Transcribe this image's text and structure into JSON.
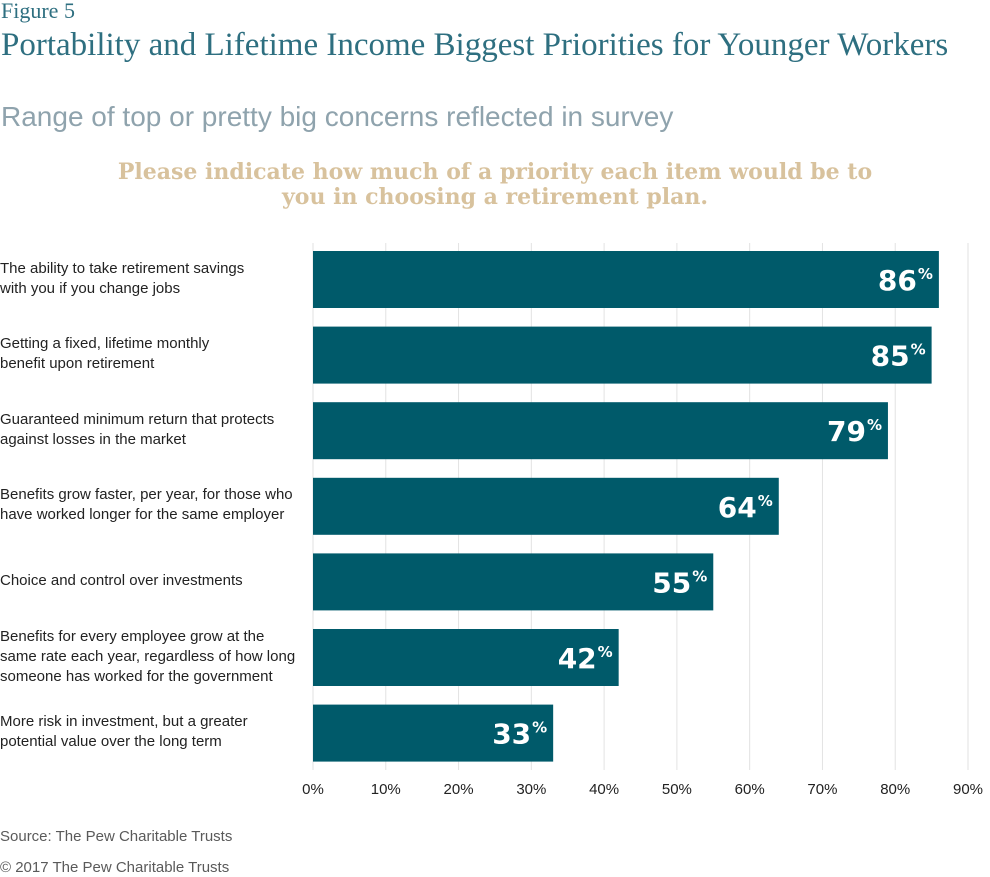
{
  "figure_label": "Figure 5",
  "title": "Portability and Lifetime Income Biggest Priorities for Younger Workers",
  "subtitle": "Range of top or pretty big concerns reflected in survey",
  "question": "Please indicate how much of a priority each item would be to you in choosing a retirement plan.",
  "source": "Source: The Pew Charitable Trusts",
  "copyright": "© 2017 The Pew Charitable Trusts",
  "colors": {
    "bar": "#005a6a",
    "title": "#2e6f80",
    "subtitle": "#8fa3ad",
    "question": "#d8c29d",
    "grid": "#e2e2e2"
  },
  "chart_data": {
    "type": "bar",
    "orientation": "horizontal",
    "categories": [
      [
        "The ability to take retirement savings",
        "with you if you change jobs"
      ],
      [
        "Getting a fixed, lifetime monthly",
        "benefit upon retirement"
      ],
      [
        "Guaranteed minimum return that protects",
        "against losses in the market"
      ],
      [
        "Benefits grow faster, per year, for those who",
        "have worked longer for the same employer"
      ],
      [
        "Choice and control over investments"
      ],
      [
        "Benefits for every employee grow at the",
        "same rate each year, regardless of how long",
        "someone has worked for the government"
      ],
      [
        "More risk in investment, but a greater",
        "potential value over the long term"
      ]
    ],
    "values": [
      86,
      85,
      79,
      64,
      55,
      42,
      33
    ],
    "value_labels": [
      "86",
      "85",
      "79",
      "64",
      "55",
      "42",
      "33"
    ],
    "value_suffix": "%",
    "x_ticks": [
      "0%",
      "10%",
      "20%",
      "30%",
      "40%",
      "50%",
      "60%",
      "70%",
      "80%",
      "90%"
    ],
    "xlim": [
      0,
      90
    ],
    "grid": true,
    "legend": "none"
  }
}
